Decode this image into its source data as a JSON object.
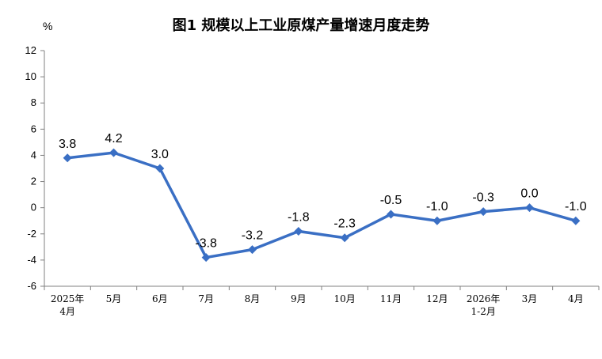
{
  "chart_data": {
    "type": "line",
    "title": "图1  规模以上工业原煤产量增速月度走势",
    "ylabel": "%",
    "categories": [
      "2025年\n4月",
      "5月",
      "6月",
      "7月",
      "8月",
      "9月",
      "10月",
      "11月",
      "12月",
      "2026年\n1-2月",
      "3月",
      "4月"
    ],
    "values": [
      3.8,
      4.2,
      3.0,
      -3.8,
      -3.2,
      -1.8,
      -2.3,
      -0.5,
      -1.0,
      -0.3,
      0.0,
      -1.0
    ],
    "data_labels": [
      "3.8",
      "4.2",
      "3.0",
      "-3.8",
      "-3.2",
      "-1.8",
      "-2.3",
      "-0.5",
      "-1.0",
      "-0.3",
      "0.0",
      "-1.0"
    ],
    "ylim": [
      -6,
      12
    ],
    "yticks": [
      12,
      10,
      8,
      6,
      4,
      2,
      0,
      -2,
      -4,
      -6
    ],
    "ytick_labels": [
      "12",
      "10",
      "8",
      "6",
      "4",
      "2",
      "0",
      "-2",
      "-4",
      "-6"
    ],
    "grid": false,
    "legend": "none",
    "line_color": "#3a6fc4"
  }
}
